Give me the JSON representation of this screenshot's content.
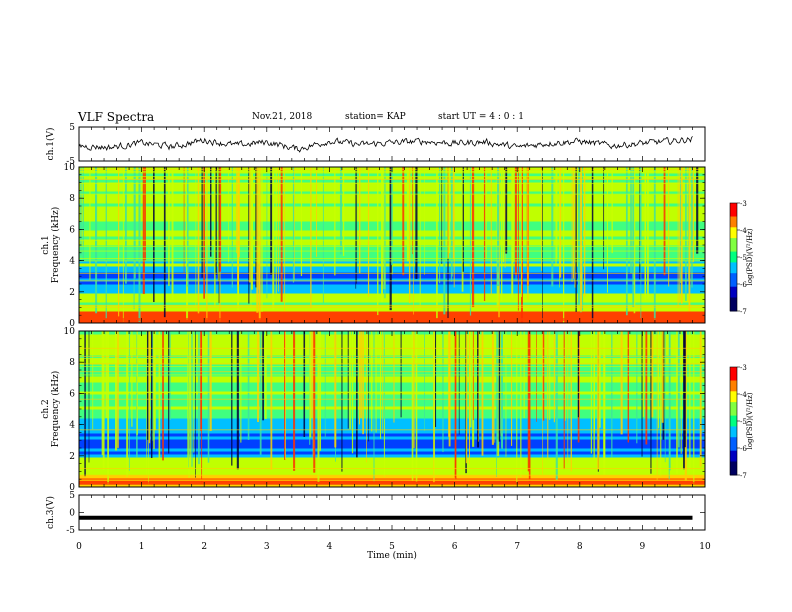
{
  "header": {
    "title": "VLF Spectra",
    "date": "Nov.21, 2018",
    "station": "station= KAP",
    "start": "start UT =  4 : 0  : 1"
  },
  "chart_data": [
    {
      "type": "line",
      "panel": "ch1-waveform",
      "ylabel": "ch.1(V)",
      "ylim": [
        -5,
        5
      ],
      "yticks": [
        "5",
        "-5"
      ],
      "xlim": [
        0,
        10
      ],
      "description_values": "noisy waveform, roughly -2 to +2 V",
      "x": [
        0.0,
        0.5,
        1.0,
        1.5,
        2.0,
        2.5,
        3.0,
        3.5,
        4.0,
        4.5,
        5.0,
        5.5,
        6.0,
        6.5,
        7.0,
        7.5,
        8.0,
        8.5,
        9.0,
        9.5,
        9.8
      ],
      "y": [
        -0.5,
        -1.0,
        0.3,
        -0.8,
        1.2,
        -0.4,
        0.6,
        -1.5,
        0.9,
        -0.2,
        0.4,
        0.8,
        0.2,
        0.6,
        -1.0,
        0.3,
        0.8,
        -0.5,
        0.2,
        0.9,
        1.5
      ],
      "color": "#000000"
    },
    {
      "type": "heatmap",
      "panel": "ch1-spectrogram",
      "ylabel_line1": "ch.1",
      "ylabel_line2": "Frequency (kHz)",
      "ylim": [
        0,
        10
      ],
      "yticks": [
        "0",
        "2",
        "4",
        "6",
        "8",
        "10"
      ],
      "xlim": [
        0,
        10
      ],
      "colorbar": {
        "label": "log(PSD)(V²/Hz)",
        "ticks": [
          "-3",
          "-4",
          "-5",
          "-6",
          "-7"
        ],
        "range": [
          -7,
          -3
        ]
      }
    },
    {
      "type": "heatmap",
      "panel": "ch2-spectrogram",
      "ylabel_line1": "ch.2",
      "ylabel_line2": "Frequency (kHz)",
      "ylim": [
        0,
        10
      ],
      "yticks": [
        "0",
        "2",
        "4",
        "6",
        "8",
        "10"
      ],
      "xlim": [
        0,
        10
      ],
      "colorbar": {
        "label": "log(PSD)(V²/Hz)",
        "ticks": [
          "-3",
          "-4",
          "-5",
          "-6",
          "-7"
        ],
        "range": [
          -7,
          -3
        ]
      }
    },
    {
      "type": "line",
      "panel": "ch3-waveform",
      "ylabel": "ch.3(V)",
      "ylim": [
        -5,
        5
      ],
      "yticks": [
        "5",
        "0",
        "-5"
      ],
      "xlim": [
        0,
        10
      ],
      "x": [
        0,
        9.8
      ],
      "y": [
        -1.5,
        -1.5
      ],
      "color": "#000000"
    }
  ],
  "xaxis": {
    "label": "Time (min)",
    "ticks": [
      "0",
      "1",
      "2",
      "3",
      "4",
      "5",
      "6",
      "7",
      "8",
      "9",
      "10"
    ]
  },
  "colors": {
    "colormap": [
      "#0000a0",
      "#0040ff",
      "#00c0ff",
      "#40ff80",
      "#c0ff00",
      "#ffd000",
      "#ff4000",
      "#c00000"
    ]
  }
}
